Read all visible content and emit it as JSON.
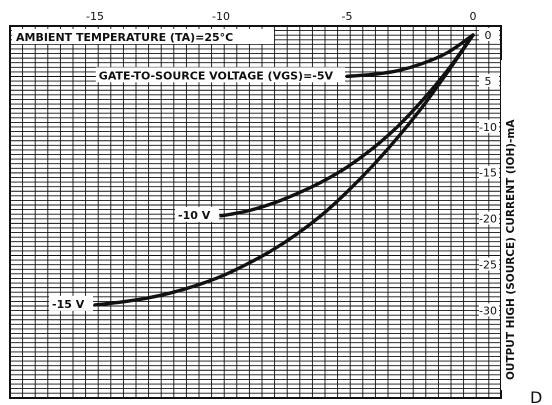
{
  "chart_data": {
    "type": "line",
    "condition_label": "AMBIENT TEMPERATURE (TA)=25°C",
    "ylabel": "OUTPUT HIGH (SOURCE) CURRENT (IOH)-mA",
    "xlim": [
      -19,
      0
    ],
    "ylim": [
      0,
      -34
    ],
    "x_ticks": [
      {
        "value": -15,
        "label": "-15"
      },
      {
        "value": -10,
        "label": "-10"
      },
      {
        "value": -5,
        "label": "-5"
      },
      {
        "value": 0,
        "label": "0"
      }
    ],
    "y_ticks": [
      {
        "value": 0,
        "label": "0"
      },
      {
        "value": -5,
        "label": "5"
      },
      {
        "value": -10,
        "label": "-10"
      },
      {
        "value": -15,
        "label": "-15"
      },
      {
        "value": -20,
        "label": "-20"
      },
      {
        "value": -25,
        "label": "-25"
      },
      {
        "value": -30,
        "label": "-30"
      }
    ],
    "series": [
      {
        "name": "GATE-TO-SOURCE VOLTAGE (VGS)=-5V",
        "x": [
          -5,
          -4,
          -3,
          -2,
          -1,
          0
        ],
        "y": [
          -4.5,
          -4.3,
          -3.9,
          -3.1,
          -1.9,
          0
        ]
      },
      {
        "name": "-10 V",
        "x": [
          -10,
          -9,
          -8,
          -7,
          -6,
          -5,
          -4,
          -3,
          -2,
          -1,
          0
        ],
        "y": [
          -19.7,
          -19.2,
          -18.4,
          -17.3,
          -16,
          -14.4,
          -12.4,
          -10,
          -7.1,
          -3.8,
          0
        ]
      },
      {
        "name": "-15 V",
        "x": [
          -15,
          -14,
          -13,
          -12,
          -11,
          -10,
          -9,
          -8,
          -7,
          -6,
          -5,
          -4,
          -3,
          -2,
          -1,
          0
        ],
        "y": [
          -29.4,
          -29.1,
          -28.7,
          -28.1,
          -27.3,
          -26.3,
          -25,
          -23.5,
          -21.7,
          -19.6,
          -17.1,
          -14.3,
          -11.2,
          -7.8,
          -4,
          0
        ]
      }
    ],
    "grid": true
  },
  "stray_char": "D"
}
